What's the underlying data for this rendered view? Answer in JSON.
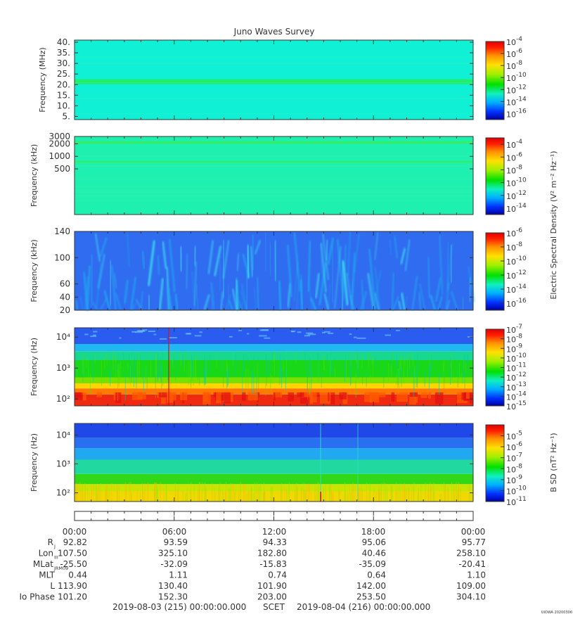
{
  "title": "Juno Waves Survey",
  "watermark": "UIOWA 20200306",
  "chart_data": [
    {
      "type": "heatmap",
      "panel": 1,
      "ylabel": "Frequency (MHz)",
      "yscale": "linear",
      "ylim": [
        3.5,
        41
      ],
      "yticks": [
        "40.",
        "35.",
        "30.",
        "25.",
        "20.",
        "15.",
        "10.",
        "5."
      ],
      "ytick_values": [
        40,
        35,
        30,
        25,
        20,
        15,
        10,
        5
      ],
      "colorbar_ticks": [
        "-4",
        "-6",
        "-8",
        "-10",
        "-12",
        "-14",
        "-16"
      ],
      "colorbar_range": [
        -17,
        -4
      ],
      "background_color": "#10f0d4",
      "bands": [
        {
          "from": 20.2,
          "to": 22.5,
          "color": "#22ee66"
        }
      ]
    },
    {
      "type": "heatmap",
      "panel": 2,
      "ylabel": "Frequency (kHz)",
      "yscale": "log",
      "ylim": [
        40,
        3000
      ],
      "yticks": [
        "3000",
        "2000",
        "1000",
        "500"
      ],
      "ytick_values": [
        3000,
        2000,
        1000,
        500
      ],
      "colorbar_label": "Electric Spectral Density (V² m⁻² Hz⁻¹)",
      "colorbar_ticks": [
        "-4",
        "-6",
        "-8",
        "-10",
        "-12",
        "-14"
      ],
      "colorbar_range": [
        -15,
        -3
      ],
      "background_color": "#1ef0b0",
      "bands": [
        {
          "from": 2000,
          "to": 2300,
          "color": "#33ee66"
        },
        {
          "from": 700,
          "to": 760,
          "color": "#33ee55"
        }
      ]
    },
    {
      "type": "heatmap",
      "panel": 3,
      "ylabel": "Frequency (kHz)",
      "yscale": "linear",
      "ylim": [
        20,
        140
      ],
      "yticks": [
        "140",
        "100",
        "60",
        "40",
        "20"
      ],
      "ytick_values": [
        140,
        100,
        60,
        40,
        20
      ],
      "colorbar_ticks": [
        "-6",
        "-8",
        "-10",
        "-12",
        "-14",
        "-16"
      ],
      "colorbar_range": [
        -17,
        -6
      ],
      "background_color": "#2f6cf0"
    },
    {
      "type": "heatmap",
      "panel": 4,
      "ylabel": "Frequency (Hz)",
      "yscale": "log",
      "ylim": [
        60,
        20000
      ],
      "yticks": [
        "10⁴",
        "10³",
        "10²"
      ],
      "ytick_values": [
        10000,
        1000,
        100
      ],
      "colorbar_ticks": [
        "-7",
        "-8",
        "-9",
        "-10",
        "-11",
        "-12",
        "-13",
        "-14",
        "-15"
      ],
      "colorbar_range": [
        -15,
        -7
      ],
      "layers": [
        {
          "from": 60,
          "to": 140,
          "color": "#f02a10"
        },
        {
          "from": 140,
          "to": 220,
          "color": "#ff7a00"
        },
        {
          "from": 220,
          "to": 320,
          "color": "#ffd400"
        },
        {
          "from": 320,
          "to": 500,
          "color": "#7ae000"
        },
        {
          "from": 500,
          "to": 1800,
          "color": "#18d818"
        },
        {
          "from": 1800,
          "to": 3500,
          "color": "#18d890"
        },
        {
          "from": 3500,
          "to": 6000,
          "color": "#20b8f0"
        },
        {
          "from": 6000,
          "to": 20000,
          "color": "#2a5cf0"
        }
      ]
    },
    {
      "type": "heatmap",
      "panel": 5,
      "ylabel": "Frequency (Hz)",
      "yscale": "log",
      "ylim": [
        50,
        25000
      ],
      "yticks": [
        "10⁴",
        "10³",
        "10²"
      ],
      "ytick_values": [
        10000,
        1000,
        100
      ],
      "colorbar_label": "B SD (nT² Hz⁻¹)",
      "colorbar_ticks": [
        "-5",
        "-6",
        "-7",
        "-8",
        "-9",
        "-10",
        "-11"
      ],
      "colorbar_range": [
        -11,
        -4
      ],
      "layers": [
        {
          "from": 50,
          "to": 110,
          "color": "#f0d800"
        },
        {
          "from": 110,
          "to": 200,
          "color": "#c8e400"
        },
        {
          "from": 200,
          "to": 450,
          "color": "#30d818"
        },
        {
          "from": 450,
          "to": 1400,
          "color": "#20d8a0"
        },
        {
          "from": 1400,
          "to": 3500,
          "color": "#20a8f0"
        },
        {
          "from": 3500,
          "to": 8000,
          "color": "#2870f0"
        },
        {
          "from": 8000,
          "to": 25000,
          "color": "#2048e8"
        }
      ]
    }
  ],
  "time_axis": {
    "labels": [
      "00:00",
      "06:00",
      "12:00",
      "18:00",
      "00:00"
    ],
    "rows": [
      {
        "label": "R",
        "sub": "J",
        "values": [
          "92.82",
          "93.59",
          "94.33",
          "95.06",
          "95.77"
        ]
      },
      {
        "label": "Lon",
        "sub": "III",
        "values": [
          "107.50",
          "325.10",
          "182.80",
          "40.46",
          "258.10"
        ]
      },
      {
        "label": "MLat",
        "sub": "JRM09",
        "values": [
          "-25.50",
          "-32.09",
          "-15.83",
          "-35.09",
          "-20.41"
        ]
      },
      {
        "label": "MLT",
        "sub": "",
        "values": [
          "0.44",
          "1.11",
          "0.74",
          "0.64",
          "1.10"
        ]
      },
      {
        "label": "L",
        "sub": "",
        "values": [
          "113.90",
          "130.40",
          "101.90",
          "142.00",
          "109.00"
        ]
      },
      {
        "label": "Io Phase",
        "sub": "",
        "values": [
          "101.20",
          "152.30",
          "203.00",
          "253.50",
          "304.10"
        ]
      }
    ],
    "start": "2019-08-03 (215) 00:00:00.000",
    "scet": "SCET",
    "end": "2019-08-04 (216) 00:00:00.000"
  },
  "colors": {
    "colorbar": [
      "#0000b0",
      "#0040ff",
      "#00d0ff",
      "#10f0a0",
      "#00e000",
      "#a0f000",
      "#ffe000",
      "#ff8000",
      "#ff0000",
      "#e00000"
    ]
  }
}
